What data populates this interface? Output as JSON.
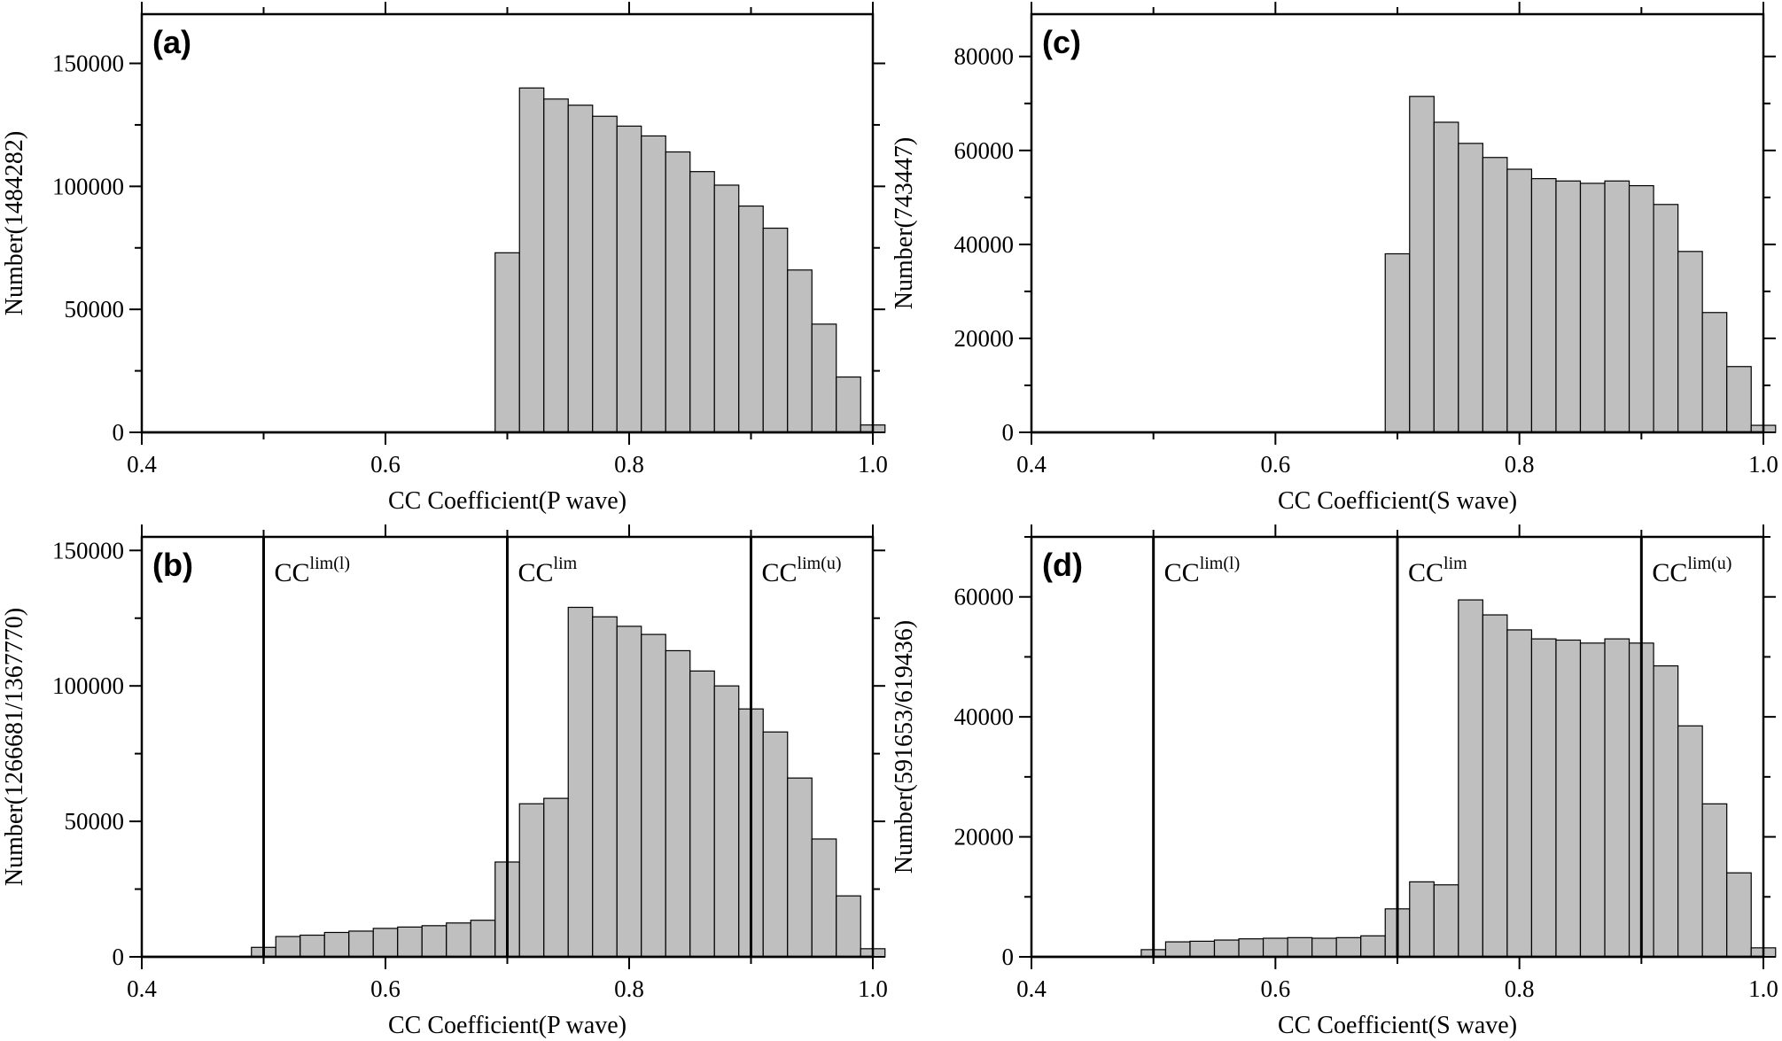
{
  "chart_data": [
    {
      "type": "bar",
      "panel": "(a)",
      "xlabel": "CC Coefficient(P wave)",
      "ylabel": "Number(1484282)",
      "xlim": [
        0.4,
        1.0
      ],
      "ylim": [
        0,
        170000
      ],
      "xticks": [
        0.4,
        0.6,
        0.8,
        1.0
      ],
      "xtick_labels": [
        "0.4",
        "0.6",
        "0.8",
        "1.0"
      ],
      "yticks": [
        0,
        50000,
        100000,
        150000
      ],
      "ytick_labels": [
        "0",
        "50000",
        "100000",
        "150000"
      ],
      "bin_width": 0.02,
      "bin_starts": [
        0.69,
        0.71,
        0.73,
        0.75,
        0.77,
        0.79,
        0.81,
        0.83,
        0.85,
        0.87,
        0.89,
        0.91,
        0.93,
        0.95,
        0.97,
        0.99
      ],
      "values": [
        73000,
        140000,
        135500,
        133000,
        128500,
        124500,
        120500,
        114000,
        106000,
        100500,
        92000,
        83000,
        66000,
        44000,
        22500,
        3000
      ],
      "lines": []
    },
    {
      "type": "bar",
      "panel": "(b)",
      "xlabel": "CC Coefficient(P wave)",
      "ylabel": "Number(1266681/1367770)",
      "xlim": [
        0.4,
        1.0
      ],
      "ylim": [
        0,
        155000
      ],
      "xticks": [
        0.4,
        0.6,
        0.8,
        1.0
      ],
      "xtick_labels": [
        "0.4",
        "0.6",
        "0.8",
        "1.0"
      ],
      "yticks": [
        0,
        50000,
        100000,
        150000
      ],
      "ytick_labels": [
        "0",
        "50000",
        "100000",
        "150000"
      ],
      "bin_width": 0.02,
      "bin_starts": [
        0.49,
        0.51,
        0.53,
        0.55,
        0.57,
        0.59,
        0.61,
        0.63,
        0.65,
        0.67,
        0.69,
        0.71,
        0.73,
        0.75,
        0.77,
        0.79,
        0.81,
        0.83,
        0.85,
        0.87,
        0.89,
        0.91,
        0.93,
        0.95,
        0.97,
        0.99
      ],
      "values": [
        3500,
        7500,
        8000,
        9000,
        9500,
        10500,
        11000,
        11500,
        12500,
        13500,
        35000,
        56500,
        58500,
        129000,
        125500,
        122000,
        119000,
        113000,
        105500,
        100000,
        91500,
        83000,
        66000,
        43500,
        22500,
        3000
      ],
      "lines": [
        {
          "x": 0.5,
          "label": "CC",
          "sup": "lim(l)"
        },
        {
          "x": 0.7,
          "label": "CC",
          "sup": "lim"
        },
        {
          "x": 0.9,
          "label": "CC",
          "sup": "lim(u)"
        }
      ]
    },
    {
      "type": "bar",
      "panel": "(c)",
      "xlabel": "CC Coefficient(S wave)",
      "ylabel": "Number(743447)",
      "xlim": [
        0.4,
        1.0
      ],
      "ylim": [
        0,
        89000
      ],
      "xticks": [
        0.4,
        0.6,
        0.8,
        1.0
      ],
      "xtick_labels": [
        "0.4",
        "0.6",
        "0.8",
        "1.0"
      ],
      "yticks": [
        0,
        20000,
        40000,
        60000,
        80000
      ],
      "ytick_labels": [
        "0",
        "20000",
        "40000",
        "60000",
        "80000"
      ],
      "bin_width": 0.02,
      "bin_starts": [
        0.69,
        0.71,
        0.73,
        0.75,
        0.77,
        0.79,
        0.81,
        0.83,
        0.85,
        0.87,
        0.89,
        0.91,
        0.93,
        0.95,
        0.97,
        0.99
      ],
      "values": [
        38000,
        71500,
        66000,
        61500,
        58500,
        56000,
        54000,
        53500,
        53000,
        53500,
        52500,
        48500,
        38500,
        25500,
        14000,
        1500
      ],
      "lines": []
    },
    {
      "type": "bar",
      "panel": "(d)",
      "xlabel": "CC Coefficient(S wave)",
      "ylabel": "Number(591653/619436)",
      "xlim": [
        0.4,
        1.0
      ],
      "ylim": [
        0,
        70000
      ],
      "xticks": [
        0.4,
        0.6,
        0.8,
        1.0
      ],
      "xtick_labels": [
        "0.4",
        "0.6",
        "0.8",
        "1.0"
      ],
      "yticks": [
        0,
        20000,
        40000,
        60000
      ],
      "ytick_labels": [
        "0",
        "20000",
        "40000",
        "60000"
      ],
      "bin_width": 0.02,
      "bin_starts": [
        0.49,
        0.51,
        0.53,
        0.55,
        0.57,
        0.59,
        0.61,
        0.63,
        0.65,
        0.67,
        0.69,
        0.71,
        0.73,
        0.75,
        0.77,
        0.79,
        0.81,
        0.83,
        0.85,
        0.87,
        0.89,
        0.91,
        0.93,
        0.95,
        0.97,
        0.99
      ],
      "values": [
        1200,
        2500,
        2600,
        2800,
        3000,
        3100,
        3200,
        3100,
        3200,
        3500,
        8000,
        12500,
        12000,
        59500,
        57000,
        54500,
        53000,
        52800,
        52300,
        53000,
        52300,
        48500,
        38500,
        25500,
        14000,
        1500
      ],
      "lines": [
        {
          "x": 0.5,
          "label": "CC",
          "sup": "lim(l)"
        },
        {
          "x": 0.7,
          "label": "CC",
          "sup": "lim"
        },
        {
          "x": 0.9,
          "label": "CC",
          "sup": "lim(u)"
        }
      ]
    }
  ]
}
